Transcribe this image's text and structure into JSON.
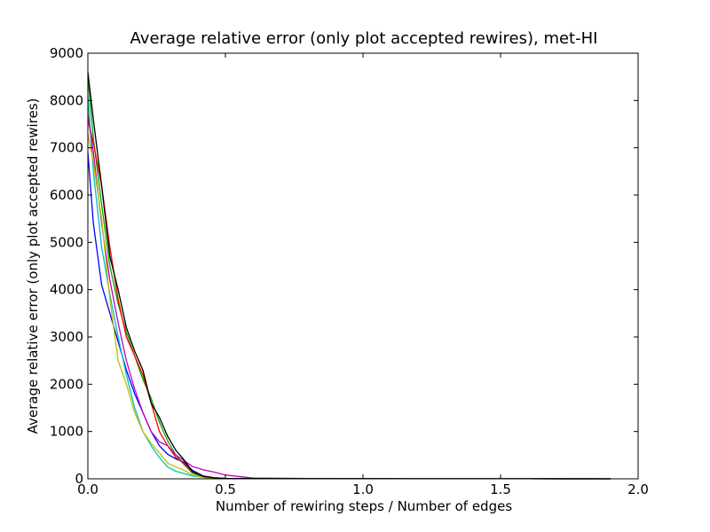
{
  "chart_data": {
    "type": "line",
    "title": "Average relative error (only plot accepted rewires), met-HI",
    "xlabel": "Number of rewiring steps / Number of edges",
    "ylabel": "Average relative error (only plot accepted rewires)",
    "xlim": [
      0.0,
      2.0
    ],
    "ylim": [
      0,
      9000
    ],
    "xticks": [
      "0.0",
      "0.5",
      "1.0",
      "1.5",
      "2.0"
    ],
    "yticks": [
      "0",
      "1000",
      "2000",
      "3000",
      "4000",
      "5000",
      "6000",
      "7000",
      "8000",
      "9000"
    ],
    "grid": false,
    "legend": "none",
    "series": [
      {
        "color": "#0000ff",
        "x": [
          0.0,
          0.02,
          0.05,
          0.08,
          0.11,
          0.14,
          0.17,
          0.2,
          0.23,
          0.26,
          0.29,
          0.32,
          0.35,
          0.38,
          0.42,
          0.46,
          0.5,
          0.6,
          0.8,
          1.2,
          1.6,
          1.9
        ],
        "y": [
          6900,
          5400,
          4100,
          3500,
          2900,
          2300,
          1800,
          1400,
          1000,
          700,
          520,
          420,
          350,
          180,
          60,
          20,
          10,
          5,
          3,
          2,
          1,
          0
        ]
      },
      {
        "color": "#00aa00",
        "x": [
          0.0,
          0.02,
          0.05,
          0.08,
          0.11,
          0.14,
          0.17,
          0.2,
          0.23,
          0.26,
          0.29,
          0.32,
          0.35,
          0.38,
          0.42,
          0.46,
          0.5,
          0.6,
          0.8,
          1.2,
          1.6,
          1.9
        ],
        "y": [
          8500,
          7200,
          5800,
          4500,
          3700,
          3100,
          2600,
          2100,
          1700,
          1200,
          800,
          500,
          300,
          120,
          40,
          15,
          8,
          4,
          3,
          2,
          1,
          0
        ]
      },
      {
        "color": "#ff0000",
        "x": [
          0.0,
          0.02,
          0.05,
          0.08,
          0.11,
          0.14,
          0.17,
          0.2,
          0.23,
          0.26,
          0.29,
          0.32,
          0.35,
          0.38,
          0.42,
          0.46,
          0.5,
          0.6,
          0.8,
          1.2,
          1.6,
          1.9
        ],
        "y": [
          7600,
          7100,
          6200,
          4900,
          3800,
          3000,
          2600,
          2200,
          1600,
          1000,
          700,
          450,
          320,
          150,
          60,
          20,
          10,
          5,
          3,
          2,
          1,
          0
        ]
      },
      {
        "color": "#00bfbf",
        "x": [
          0.0,
          0.02,
          0.05,
          0.08,
          0.11,
          0.14,
          0.17,
          0.2,
          0.23,
          0.26,
          0.29,
          0.32,
          0.35,
          0.38,
          0.42,
          0.46,
          0.5,
          0.6,
          0.8,
          1.2,
          1.6,
          1.9
        ],
        "y": [
          8100,
          6500,
          4900,
          3900,
          3000,
          2200,
          1500,
          1000,
          700,
          450,
          250,
          160,
          110,
          60,
          30,
          10,
          5,
          3,
          2,
          1,
          1,
          0
        ]
      },
      {
        "color": "#bf00bf",
        "x": [
          0.0,
          0.02,
          0.05,
          0.08,
          0.11,
          0.14,
          0.17,
          0.2,
          0.23,
          0.26,
          0.29,
          0.32,
          0.35,
          0.38,
          0.42,
          0.46,
          0.5,
          0.6,
          0.8,
          1.2,
          1.6,
          1.9
        ],
        "y": [
          7700,
          6900,
          5400,
          4200,
          3300,
          2500,
          1900,
          1400,
          1000,
          780,
          700,
          500,
          380,
          260,
          190,
          140,
          80,
          15,
          5,
          2,
          1,
          0
        ]
      },
      {
        "color": "#bfbf00",
        "x": [
          0.0,
          0.02,
          0.05,
          0.08,
          0.11,
          0.14,
          0.17,
          0.2,
          0.23,
          0.26,
          0.29,
          0.32,
          0.35,
          0.38,
          0.42,
          0.46,
          0.5,
          0.6,
          0.8,
          1.2,
          1.6,
          1.9
        ],
        "y": [
          7300,
          6700,
          5500,
          3800,
          2500,
          2000,
          1400,
          1000,
          750,
          550,
          330,
          250,
          180,
          80,
          30,
          10,
          5,
          3,
          2,
          1,
          1,
          0
        ]
      },
      {
        "color": "#000000",
        "x": [
          0.0,
          0.02,
          0.05,
          0.08,
          0.11,
          0.14,
          0.17,
          0.2,
          0.23,
          0.26,
          0.29,
          0.32,
          0.35,
          0.38,
          0.42,
          0.46,
          0.5,
          0.6,
          0.8,
          1.2,
          1.6,
          1.9
        ],
        "y": [
          8600,
          7600,
          6200,
          4700,
          4000,
          3200,
          2700,
          2300,
          1600,
          1300,
          900,
          600,
          400,
          150,
          50,
          20,
          10,
          5,
          3,
          2,
          1,
          0
        ]
      }
    ]
  }
}
